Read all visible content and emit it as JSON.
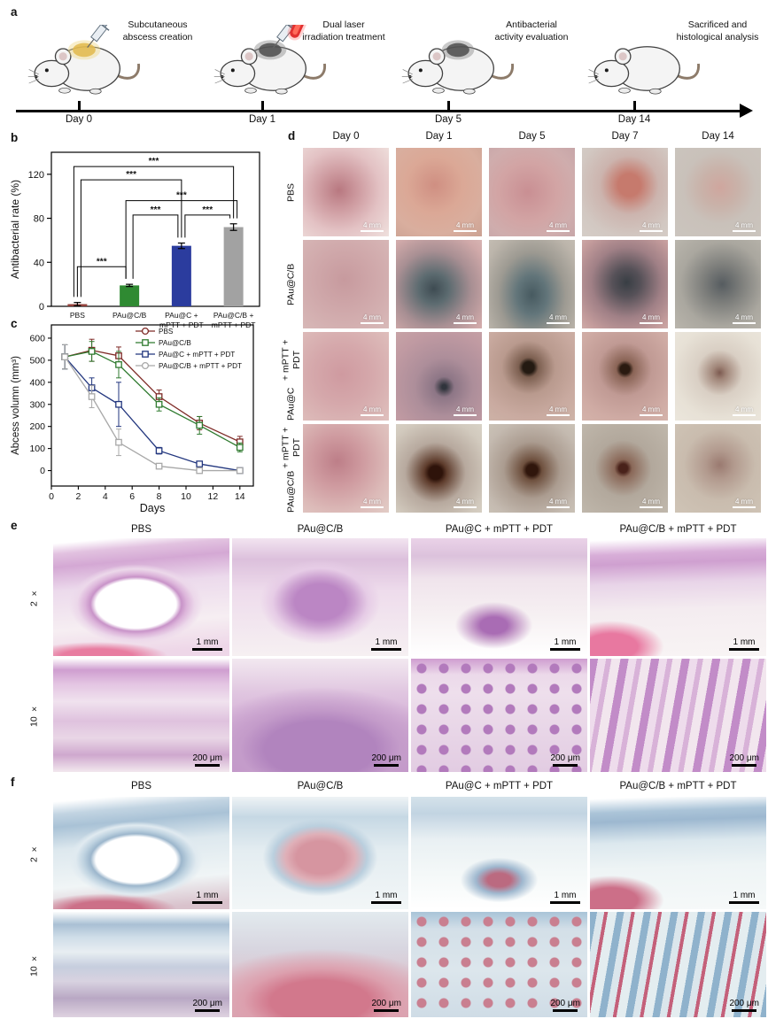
{
  "labels": {
    "a": "a",
    "b": "b",
    "c": "c",
    "d": "d",
    "e": "e",
    "f": "f"
  },
  "panel_a": {
    "steps": [
      {
        "caption_lines": [
          "Subcutaneous",
          "abscess creation"
        ],
        "day": "Day 0"
      },
      {
        "caption_lines": [
          "Dual laser",
          "irradiation treatment"
        ],
        "day": "Day 1"
      },
      {
        "caption_lines": [
          "Antibacterial",
          "activity evaluation"
        ],
        "day": "Day 5"
      },
      {
        "caption_lines": [
          "Sacrificed and",
          "histological analysis"
        ],
        "day": "Day 14"
      }
    ]
  },
  "chart_data": [
    {
      "id": "panel_b",
      "type": "bar",
      "ylabel": "Antibacterial rate (%)",
      "ylim": [
        0,
        140
      ],
      "yticks": [
        0,
        40,
        80,
        120
      ],
      "categories": [
        [
          "PBS"
        ],
        [
          "PAu@C/B"
        ],
        [
          "PAu@C +",
          "mPTT + PDT"
        ],
        [
          "PAu@C/B +",
          "mPTT + PDT"
        ]
      ],
      "values": [
        2,
        19,
        55,
        72
      ],
      "errors": [
        1.5,
        1,
        2.5,
        3
      ],
      "colors": [
        "#93403a",
        "#2f8a32",
        "#2b3c9e",
        "#a2a2a2"
      ],
      "significance": [
        {
          "a": 0,
          "b": 1,
          "y": 36,
          "label": "***"
        },
        {
          "a": 1,
          "b": 2,
          "y": 83,
          "label": "***"
        },
        {
          "a": 2,
          "b": 3,
          "y": 83,
          "label": "***"
        },
        {
          "a": 1,
          "b": 3,
          "y": 96,
          "label": "***"
        },
        {
          "a": 0,
          "b": 2,
          "y": 115,
          "label": "***"
        },
        {
          "a": 0,
          "b": 3,
          "y": 127,
          "label": "***"
        }
      ]
    },
    {
      "id": "panel_c",
      "type": "line",
      "xlabel": "Days",
      "ylabel": "Abcess volumn (mm³)",
      "xlim": [
        0,
        15
      ],
      "ylim": [
        -70,
        660
      ],
      "xticks": [
        0,
        2,
        4,
        6,
        8,
        10,
        12,
        14
      ],
      "yticks": [
        0,
        100,
        200,
        300,
        400,
        500,
        600
      ],
      "x": [
        1,
        3,
        5,
        8,
        11,
        14
      ],
      "legend_position": "top-right",
      "series": [
        {
          "name": "PBS",
          "color": "#7e2a26",
          "legend_marker": "circle",
          "values": [
            515,
            545,
            520,
            335,
            215,
            130
          ],
          "errors": [
            55,
            50,
            40,
            30,
            30,
            25
          ]
        },
        {
          "name": "PAu@C/B",
          "color": "#2f7a2f",
          "legend_marker": "square",
          "values": [
            515,
            540,
            480,
            300,
            205,
            105
          ],
          "errors": [
            55,
            45,
            60,
            30,
            40,
            20
          ]
        },
        {
          "name": "PAu@C + mPTT + PDT",
          "color": "#22367e",
          "legend_marker": "square",
          "values": [
            515,
            375,
            300,
            90,
            30,
            0
          ],
          "errors": [
            55,
            45,
            100,
            15,
            10,
            5
          ]
        },
        {
          "name": "PAu@C/B + mPTT + PDT",
          "color": "#a8a8a8",
          "legend_marker": "circle",
          "values": [
            515,
            335,
            128,
            20,
            0,
            0
          ],
          "errors": [
            55,
            50,
            60,
            12,
            5,
            5
          ]
        }
      ]
    }
  ],
  "panel_d": {
    "col_headers": [
      "Day 0",
      "Day 1",
      "Day 5",
      "Day 7",
      "Day 14"
    ],
    "row_labels": [
      [
        "PBS"
      ],
      [
        "PAu@C/B"
      ],
      [
        "PAu@C",
        "+ mPTT + PDT"
      ],
      [
        "PAu@C/B",
        "+ mPTT + PDT"
      ]
    ],
    "scale_label": "4 mm"
  },
  "panel_e": {
    "col_headers": [
      "PBS",
      "PAu@C/B",
      "PAu@C + mPTT + PDT",
      "PAu@C/B + mPTT + PDT"
    ],
    "row_labels": [
      "2 ×",
      "10 ×"
    ],
    "row_scale_labels": [
      "1 mm",
      "200 μm"
    ]
  },
  "panel_f": {
    "col_headers": [
      "PBS",
      "PAu@C/B",
      "PAu@C + mPTT + PDT",
      "PAu@C/B + mPTT + PDT"
    ],
    "row_labels": [
      "2 ×",
      "10 ×"
    ],
    "row_scale_labels": [
      "1 mm",
      "200 μm"
    ]
  }
}
